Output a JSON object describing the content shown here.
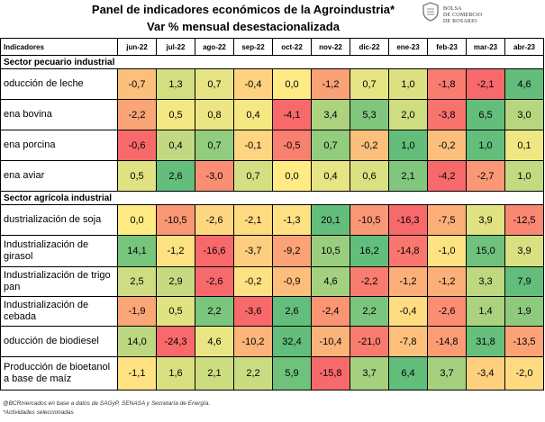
{
  "title_line1": "Panel de indicadores económicos de la Agroindustria*",
  "title_line2": "Var % mensual desestacionalizada",
  "logo": {
    "line1": "BOLSA",
    "line2": "DE COMERCIO",
    "line3": "DE ROSARIO"
  },
  "header_label": "Indicadores",
  "footnote1": "@BCRmercados en base a datos de SAGyP, SENASA y Secretaría de Energía.",
  "footnote2": "*Actividades seleccionadas",
  "colors": {
    "green": "#63be7b",
    "yellow": "#ffeb84",
    "red": "#f8696b"
  },
  "chart_data": {
    "type": "table",
    "months": [
      "jun-22",
      "jul-22",
      "ago-22",
      "sep-22",
      "oct-22",
      "nov-22",
      "dic-22",
      "ene-23",
      "feb-23",
      "mar-23",
      "abr-23"
    ],
    "sections": [
      {
        "name": "Sector pecuario industrial",
        "rows": [
          {
            "label": "oducción de leche",
            "values": [
              -0.7,
              1.3,
              0.7,
              -0.4,
              0.0,
              -1.2,
              0.7,
              1.0,
              -1.8,
              -2.1,
              4.6
            ]
          },
          {
            "label": "ena bovina",
            "values": [
              -2.2,
              0.5,
              0.8,
              0.4,
              -4.1,
              3.4,
              5.3,
              2.0,
              -3.8,
              6.5,
              3.0
            ]
          },
          {
            "label": "ena porcina",
            "values": [
              -0.6,
              0.4,
              0.7,
              -0.1,
              -0.5,
              0.7,
              -0.2,
              1.0,
              -0.2,
              1.0,
              0.1
            ]
          },
          {
            "label": "ena aviar",
            "values": [
              0.5,
              2.6,
              -3.0,
              0.7,
              0.0,
              0.4,
              0.6,
              2.1,
              -4.2,
              -2.7,
              1.0
            ]
          }
        ]
      },
      {
        "name": "Sector agrícola industrial",
        "rows": [
          {
            "label": "dustrialización de soja",
            "values": [
              0.0,
              -10.5,
              -2.6,
              -2.1,
              -1.3,
              20.1,
              -10.5,
              -16.3,
              -7.5,
              3.9,
              -12.5
            ]
          },
          {
            "label": "Industrialización de girasol",
            "values": [
              14.1,
              -1.2,
              -16.6,
              -3.7,
              -9.2,
              10.5,
              16.2,
              -14.8,
              -1.0,
              15.0,
              3.9
            ]
          },
          {
            "label": "Industrialización de trigo pan",
            "values": [
              2.5,
              2.9,
              -2.6,
              -0.2,
              -0.9,
              4.6,
              -2.2,
              -1.2,
              -1.2,
              3.3,
              7.9
            ]
          },
          {
            "label": "Industrialización de cebada",
            "values": [
              -1.9,
              0.5,
              2.2,
              -3.6,
              2.6,
              -2.4,
              2.2,
              -0.4,
              -2.6,
              1.4,
              1.9
            ]
          },
          {
            "label": "oducción de biodiesel",
            "values": [
              14.0,
              -24.3,
              4.6,
              -10.2,
              32.4,
              -10.4,
              -21.0,
              -7.8,
              -14.8,
              31.8,
              -13.5
            ]
          },
          {
            "label": "Producción de bioetanol a base de maíz",
            "values": [
              -1.1,
              1.6,
              2.1,
              2.2,
              5.9,
              -15.8,
              3.7,
              6.4,
              3.7,
              -3.4,
              -2.0
            ]
          }
        ]
      }
    ]
  }
}
